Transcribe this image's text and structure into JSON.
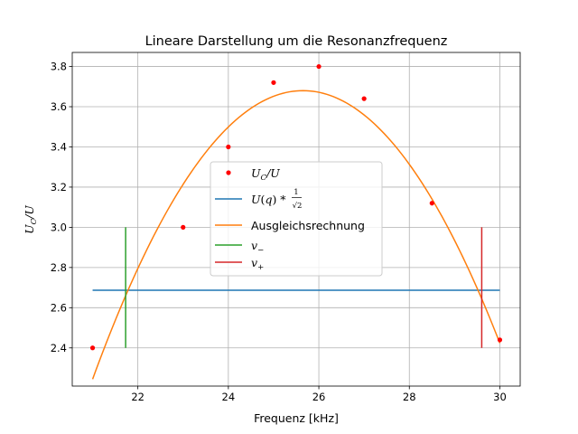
{
  "chart_data": {
    "type": "line",
    "title": "Lineare Darstellung um die Resonanzfrequenz",
    "xlabel": "Frequenz [kHz]",
    "ylabel": "U_C/U",
    "xlim": [
      20.55,
      30.45
    ],
    "ylim": [
      2.21,
      3.87
    ],
    "xticks": [
      22,
      24,
      26,
      28,
      30
    ],
    "yticks": [
      2.4,
      2.6,
      2.8,
      3.0,
      3.2,
      3.4,
      3.6,
      3.8
    ],
    "grid": true,
    "legend_placement": "center",
    "series": [
      {
        "name": "U_C/U",
        "kind": "scatter",
        "color": "#ff0000",
        "x": [
          21.0,
          23.0,
          24.0,
          25.0,
          26.0,
          27.0,
          28.5,
          30.0
        ],
        "y": [
          2.4,
          3.0,
          3.4,
          3.72,
          3.8,
          3.64,
          3.12,
          2.44
        ]
      },
      {
        "name": "U(q) * 1/√2",
        "kind": "hline",
        "color": "#1f77b4",
        "y": 2.687,
        "x": [
          21.0,
          30.0
        ]
      },
      {
        "name": "Ausgleichsrechnung",
        "kind": "parabola",
        "color": "#ff7f0e",
        "vertex_x": 25.65,
        "vertex_y": 3.68,
        "curvature": -0.0664,
        "x": [
          21.0,
          30.0
        ]
      },
      {
        "name": "v_-",
        "kind": "vline",
        "color": "#2ca02c",
        "x": 21.73,
        "y": [
          2.4,
          3.0
        ]
      },
      {
        "name": "v_+",
        "kind": "vline",
        "color": "#d62728",
        "x": 29.6,
        "y": [
          2.4,
          3.0
        ]
      }
    ]
  }
}
